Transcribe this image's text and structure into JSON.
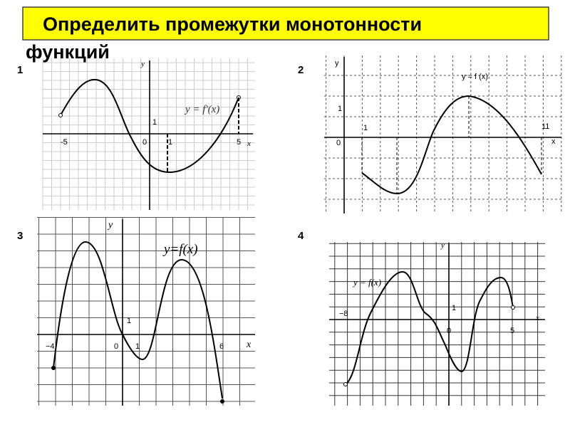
{
  "header": {
    "title": "Определить промежутки монотонности",
    "title_cont": "функций"
  },
  "graphs": [
    {
      "number": "1",
      "formula": "y = f'(x)",
      "axis_y": "y",
      "axis_x": "x",
      "ticks": [
        "-5",
        "0",
        "1",
        "1",
        "5"
      ]
    },
    {
      "number": "2",
      "formula": "y = f (x)",
      "axis_y": "y",
      "axis_x": "x",
      "ticks": [
        "1",
        "1",
        "11",
        "0"
      ]
    },
    {
      "number": "3",
      "formula": "y=f(x)",
      "axis_y": "y",
      "axis_x": "x",
      "ticks": [
        "1",
        "−4",
        "0",
        "1",
        "6"
      ]
    },
    {
      "number": "4",
      "formula": "y = f(x)",
      "axis_y": "y",
      "axis_x": "x",
      "ticks": [
        "−8",
        "1",
        "0",
        "5"
      ]
    }
  ]
}
